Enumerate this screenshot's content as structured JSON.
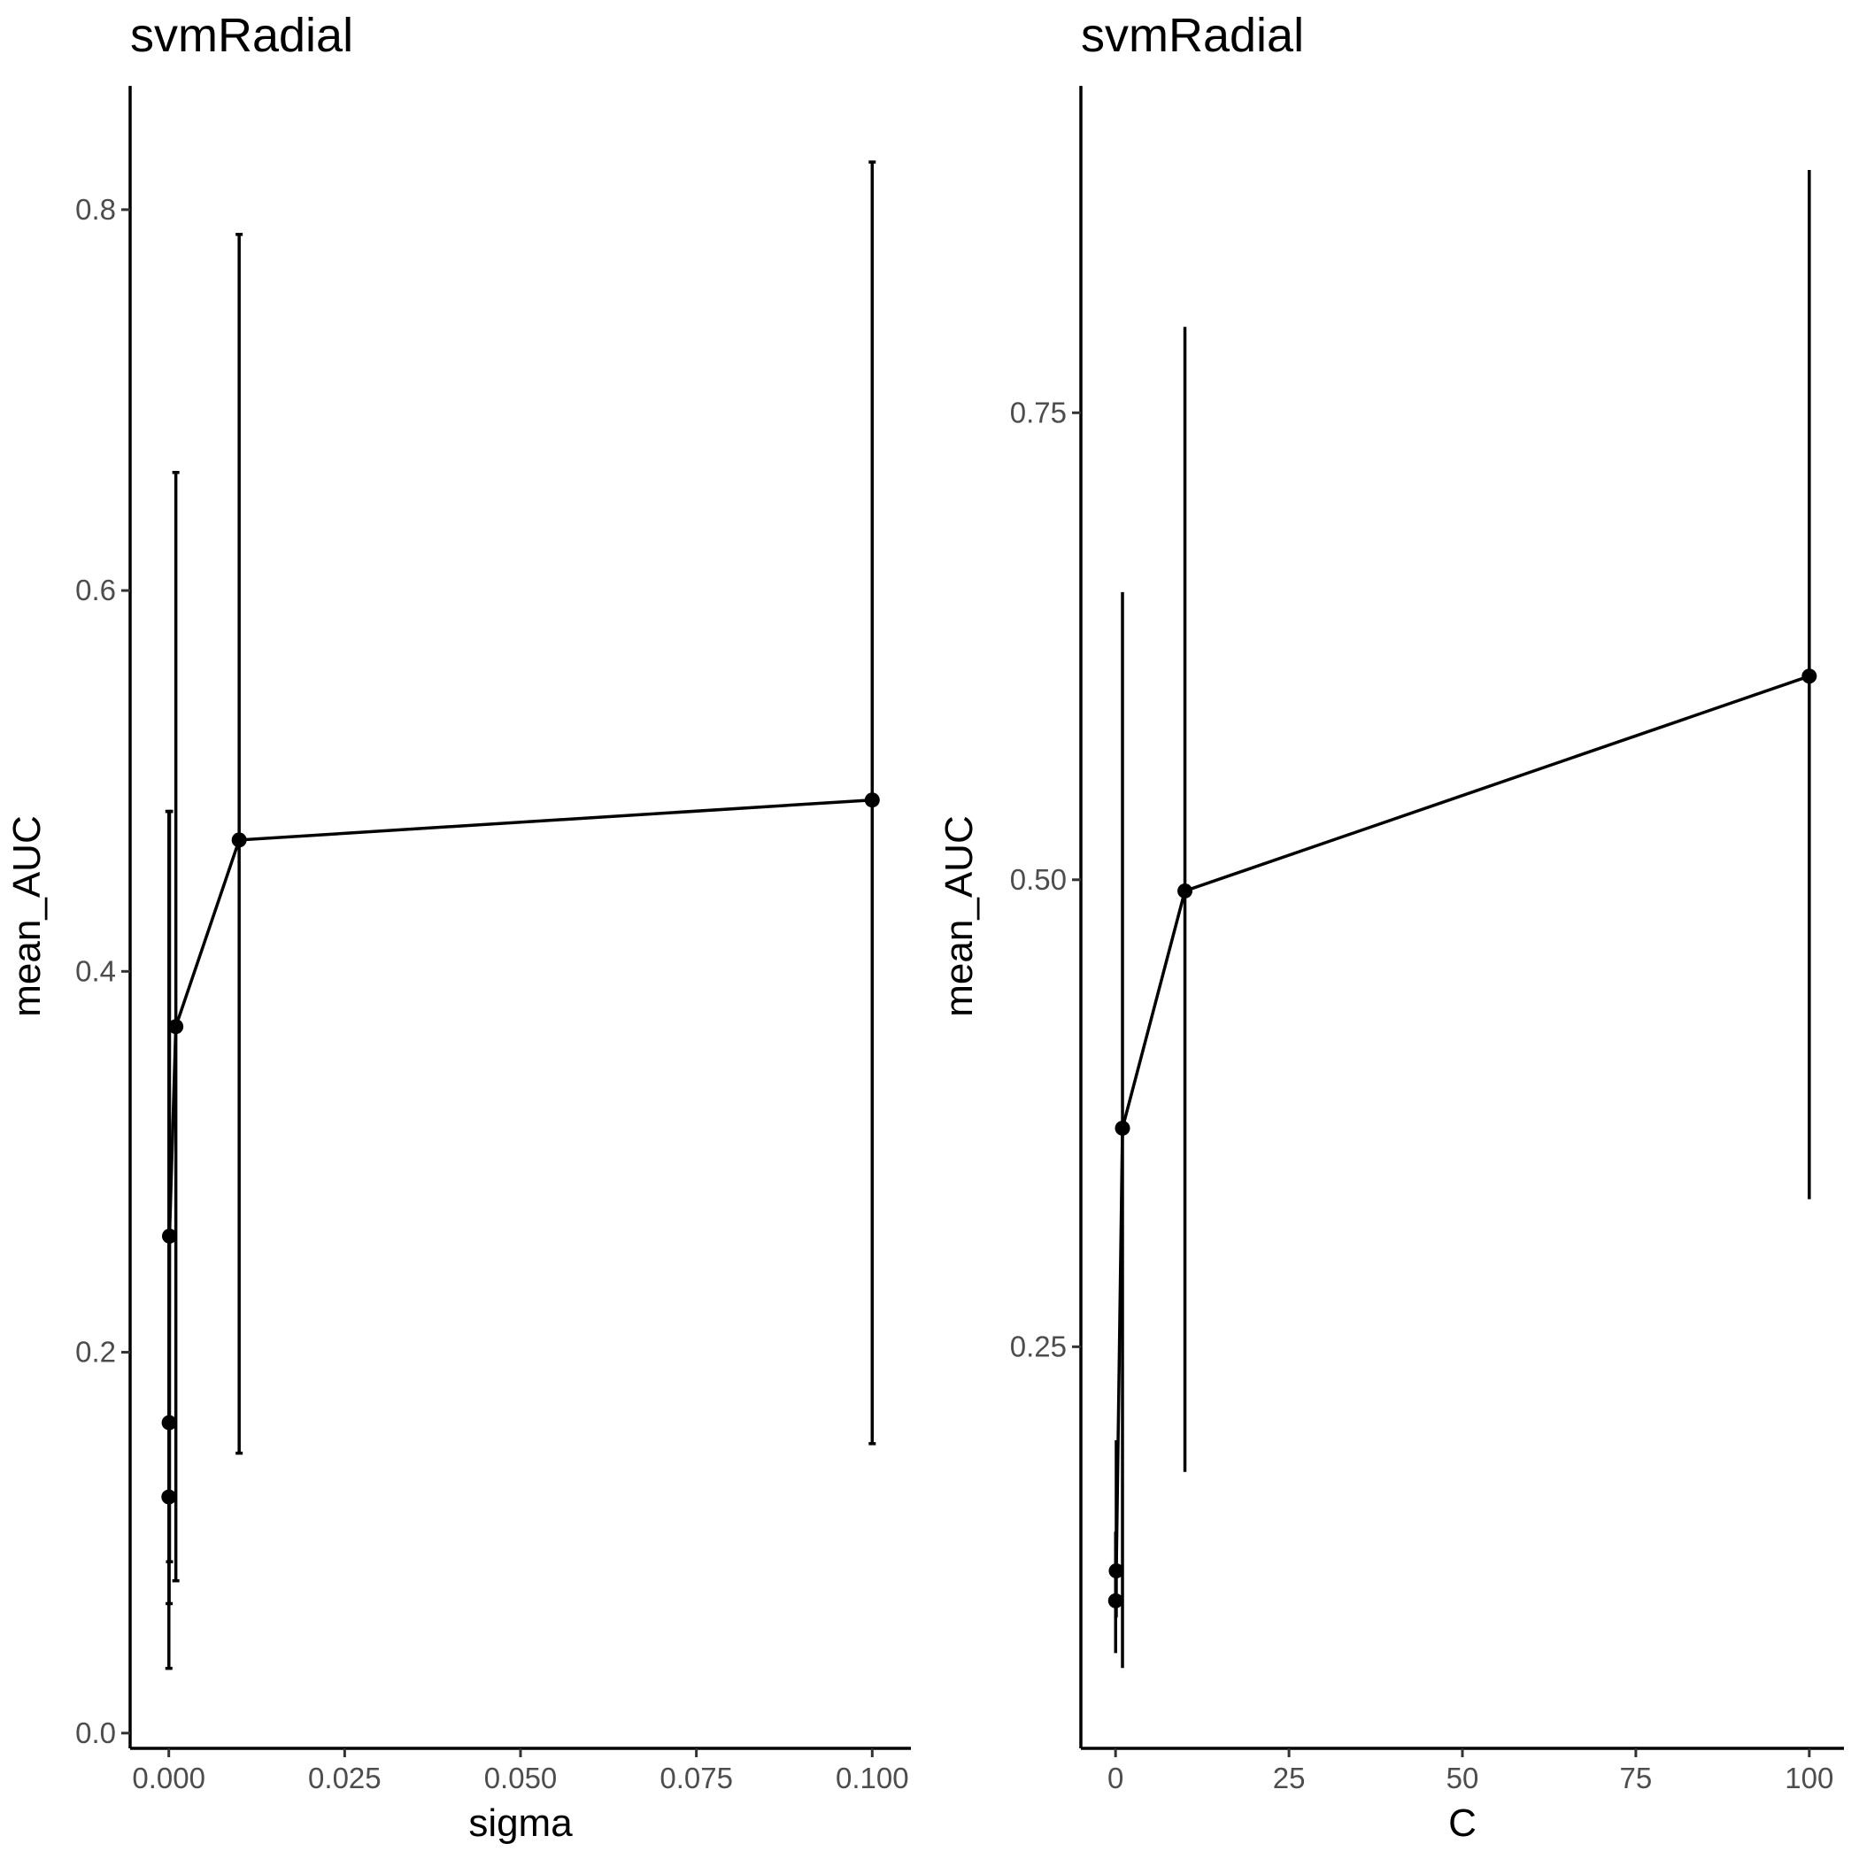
{
  "chart_data": [
    {
      "type": "line",
      "title": "svmRadial",
      "xlabel": "sigma",
      "ylabel": "mean_AUC",
      "xlim": [
        -0.0055,
        0.1055
      ],
      "ylim": [
        -0.008,
        0.865
      ],
      "xticks": [
        0.0,
        0.025,
        0.05,
        0.075,
        0.1
      ],
      "xtick_labels": [
        "0.000",
        "0.025",
        "0.050",
        "0.075",
        "0.100"
      ],
      "yticks": [
        0.0,
        0.2,
        0.4,
        0.6,
        0.8
      ],
      "ytick_labels": [
        "0.0",
        "0.2",
        "0.4",
        "0.6",
        "0.8"
      ],
      "grid": false,
      "errorbar_caps": true,
      "points": [
        {
          "x": 1e-05,
          "y": 0.124,
          "ymin": 0.034,
          "ymax": 0.484
        },
        {
          "x": 5e-05,
          "y": 0.163,
          "ymin": 0.068,
          "ymax": 0.484
        },
        {
          "x": 0.0001,
          "y": 0.261,
          "ymin": 0.09,
          "ymax": 0.484
        },
        {
          "x": 0.001,
          "y": 0.371,
          "ymin": 0.08,
          "ymax": 0.662
        },
        {
          "x": 0.01,
          "y": 0.469,
          "ymin": 0.147,
          "ymax": 0.787
        },
        {
          "x": 0.1,
          "y": 0.49,
          "ymin": 0.152,
          "ymax": 0.825
        }
      ]
    },
    {
      "type": "line",
      "title": "svmRadial",
      "xlabel": "C",
      "ylabel": "mean_AUC",
      "xlim": [
        -5.0,
        105.0
      ],
      "ylim": [
        0.035,
        0.925
      ],
      "xticks": [
        0,
        25,
        50,
        75,
        100
      ],
      "xtick_labels": [
        "0",
        "25",
        "50",
        "75",
        "100"
      ],
      "yticks": [
        0.25,
        0.5,
        0.75
      ],
      "ytick_labels": [
        "0.25",
        "0.50",
        "0.75"
      ],
      "grid": false,
      "errorbar_caps": false,
      "points": [
        {
          "x": 0.01,
          "y": 0.114,
          "ymin": 0.086,
          "ymax": 0.151
        },
        {
          "x": 0.1,
          "y": 0.13,
          "ymin": 0.105,
          "ymax": 0.2
        },
        {
          "x": 1,
          "y": 0.367,
          "ymin": 0.078,
          "ymax": 0.654
        },
        {
          "x": 10,
          "y": 0.494,
          "ymin": 0.183,
          "ymax": 0.796
        },
        {
          "x": 100,
          "y": 0.609,
          "ymin": 0.329,
          "ymax": 0.88
        }
      ]
    }
  ]
}
